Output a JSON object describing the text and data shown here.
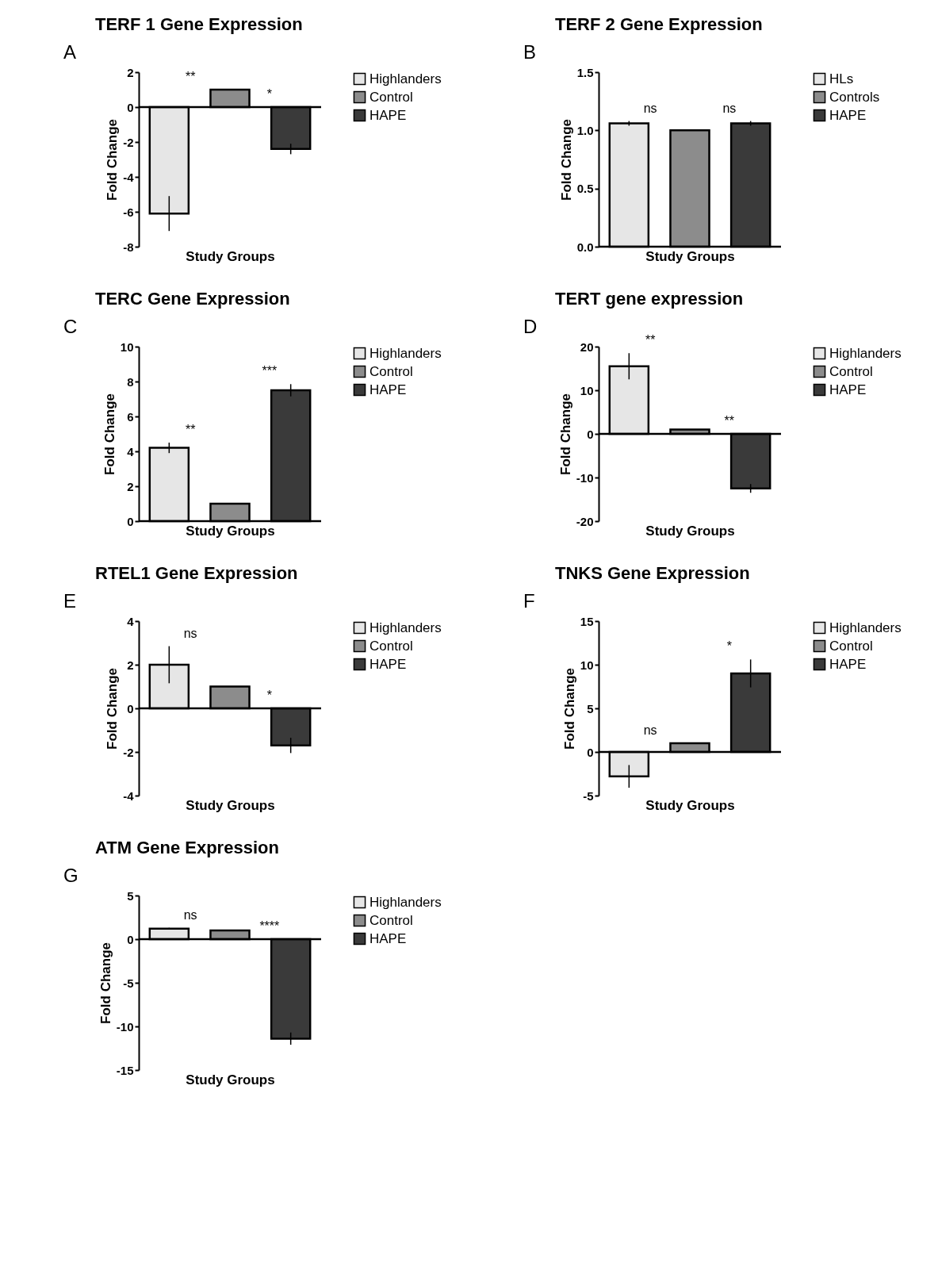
{
  "chart_data": [
    {
      "type": "bar",
      "title": "TERF 1 Gene Expression",
      "xlabel": "Study Groups",
      "ylabel": "Fold Change",
      "categories": [
        null,
        null,
        null
      ],
      "legend": "right",
      "ylim": [
        -8,
        2
      ],
      "yticks": [
        -8,
        -6,
        -4,
        -2,
        0,
        2
      ],
      "series": [
        {
          "name": "Highlanders",
          "color": "#e6e6e6",
          "values": [
            -6.1,
            null,
            null
          ],
          "errors": [
            1,
            null,
            null
          ]
        },
        {
          "name": "Control",
          "color": "#8c8c8c",
          "values": [
            null,
            1,
            null
          ],
          "errors": [
            null,
            null,
            null
          ]
        },
        {
          "name": "HAPE",
          "color": "#3a3a3a",
          "values": [
            null,
            null,
            -2.4
          ],
          "errors": [
            null,
            null,
            0.3
          ]
        }
      ],
      "annotations": [
        "A",
        "**",
        "*"
      ]
    },
    {
      "type": "bar",
      "title": "TERF 2 Gene Expression",
      "xlabel": "Study Groups",
      "ylabel": "Fold Change",
      "categories": [
        null,
        null,
        null
      ],
      "legend": "right",
      "ylim": [
        0,
        1.5
      ],
      "yticks": [
        {
          "value": 0,
          "label": "0.0"
        },
        {
          "value": 0.5,
          "label": "0.5"
        },
        {
          "value": 1,
          "label": "1.0"
        },
        {
          "value": 1.5,
          "label": "1.5"
        }
      ],
      "series": [
        {
          "name": "HLs",
          "color": "#e6e6e6",
          "values": [
            1.06,
            null,
            null
          ],
          "errors": [
            0.02,
            null,
            null
          ]
        },
        {
          "name": "Controls",
          "color": "#8c8c8c",
          "values": [
            null,
            1,
            null
          ],
          "errors": [
            null,
            null,
            null
          ]
        },
        {
          "name": "HAPE",
          "color": "#3a3a3a",
          "values": [
            null,
            null,
            1.06
          ],
          "errors": [
            null,
            null,
            0.02
          ]
        }
      ],
      "annotations": [
        "B",
        "ns",
        "ns"
      ]
    },
    {
      "type": "bar",
      "title": "TERC Gene Expression",
      "xlabel": "Study Groups",
      "ylabel": "Fold Change",
      "categories": [
        null,
        null,
        null
      ],
      "legend": "right",
      "ylim": [
        0,
        10
      ],
      "yticks": [
        0,
        2,
        4,
        6,
        8,
        10
      ],
      "series": [
        {
          "name": "Highlanders",
          "color": "#e6e6e6",
          "values": [
            4.2,
            null,
            null
          ],
          "errors": [
            0.3,
            null,
            null
          ]
        },
        {
          "name": "Control",
          "color": "#8c8c8c",
          "values": [
            null,
            1,
            null
          ],
          "errors": [
            null,
            null,
            null
          ]
        },
        {
          "name": "HAPE",
          "color": "#3a3a3a",
          "values": [
            null,
            null,
            7.5
          ],
          "errors": [
            null,
            null,
            0.35
          ]
        }
      ],
      "annotations": [
        "C",
        "**",
        "***"
      ]
    },
    {
      "type": "bar",
      "title": "TERT gene expression",
      "xlabel": "Study Groups",
      "ylabel": "Fold Change",
      "categories": [
        null,
        null,
        null
      ],
      "legend": "right",
      "ylim": [
        -20,
        20
      ],
      "yticks": [
        -20,
        -10,
        0,
        10,
        20
      ],
      "series": [
        {
          "name": "Highlanders",
          "color": "#e6e6e6",
          "values": [
            15.5,
            null,
            null
          ],
          "errors": [
            3,
            null,
            null
          ]
        },
        {
          "name": "Control",
          "color": "#8c8c8c",
          "values": [
            null,
            1,
            null
          ],
          "errors": [
            null,
            null,
            null
          ]
        },
        {
          "name": "HAPE",
          "color": "#3a3a3a",
          "values": [
            null,
            null,
            -12.5
          ],
          "errors": [
            null,
            null,
            1
          ]
        }
      ],
      "annotations": [
        "D",
        "**",
        "**"
      ]
    },
    {
      "type": "bar",
      "title": "RTEL1 Gene Expression",
      "xlabel": "Study Groups",
      "ylabel": "Fold Change",
      "categories": [
        null,
        null,
        null
      ],
      "legend": "right",
      "ylim": [
        -4,
        4
      ],
      "yticks": [
        -4,
        -2,
        0,
        2,
        4
      ],
      "series": [
        {
          "name": "Highlanders",
          "color": "#e6e6e6",
          "values": [
            2,
            null,
            null
          ],
          "errors": [
            0.85,
            null,
            null
          ]
        },
        {
          "name": "Control",
          "color": "#8c8c8c",
          "values": [
            null,
            1,
            null
          ],
          "errors": [
            null,
            null,
            null
          ]
        },
        {
          "name": "HAPE",
          "color": "#3a3a3a",
          "values": [
            null,
            null,
            -1.7
          ],
          "errors": [
            null,
            null,
            0.35
          ]
        }
      ],
      "annotations": [
        "E",
        "ns",
        "*"
      ]
    },
    {
      "type": "bar",
      "title": "TNKS Gene Expression",
      "xlabel": "Study Groups",
      "ylabel": "Fold Change",
      "categories": [
        null,
        null,
        null
      ],
      "legend": "right",
      "ylim": [
        -5,
        15
      ],
      "yticks": [
        -5,
        0,
        5,
        10,
        15
      ],
      "series": [
        {
          "name": "Highlanders",
          "color": "#e6e6e6",
          "values": [
            -2.8,
            null,
            null
          ],
          "errors": [
            1.3,
            null,
            null
          ]
        },
        {
          "name": "Control",
          "color": "#8c8c8c",
          "values": [
            null,
            1,
            null
          ],
          "errors": [
            null,
            null,
            null
          ]
        },
        {
          "name": "HAPE",
          "color": "#3a3a3a",
          "values": [
            null,
            null,
            9
          ],
          "errors": [
            null,
            null,
            1.6
          ]
        }
      ],
      "annotations": [
        "F",
        "ns",
        "*"
      ]
    },
    {
      "type": "bar",
      "title": "ATM Gene Expression",
      "xlabel": "Study Groups",
      "ylabel": "Fold Change",
      "categories": [
        null,
        null,
        null
      ],
      "legend": "right",
      "ylim": [
        -15,
        5
      ],
      "yticks": [
        -15,
        -10,
        -5,
        0,
        5
      ],
      "series": [
        {
          "name": "Highlanders",
          "color": "#e6e6e6",
          "values": [
            1.2,
            null,
            null
          ],
          "errors": [
            0.1,
            null,
            null
          ]
        },
        {
          "name": "Control",
          "color": "#8c8c8c",
          "values": [
            null,
            1,
            null
          ],
          "errors": [
            null,
            null,
            null
          ]
        },
        {
          "name": "HAPE",
          "color": "#3a3a3a",
          "values": [
            null,
            null,
            -11.4
          ],
          "errors": [
            null,
            null,
            0.7
          ]
        }
      ],
      "annotations": [
        "G",
        "ns",
        "****"
      ]
    }
  ]
}
